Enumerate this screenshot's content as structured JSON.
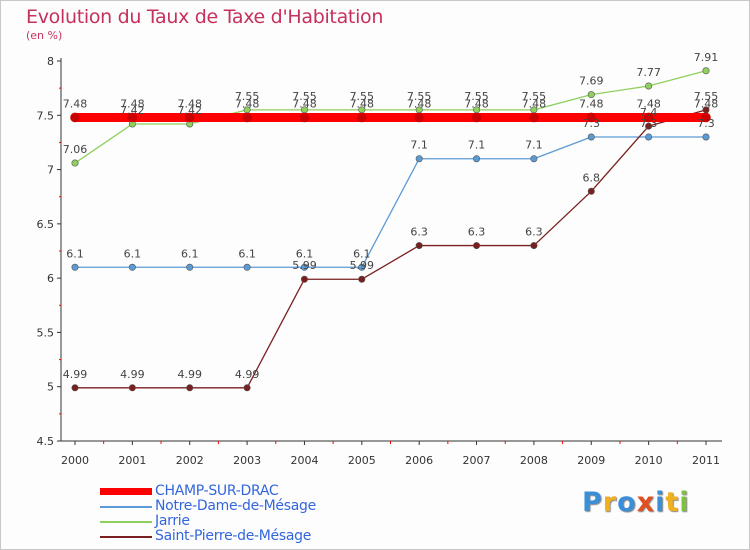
{
  "chart_data": {
    "type": "line",
    "title": "Evolution du Taux de Taxe d'Habitation",
    "subtitle": "(en %)",
    "x": [
      "2000",
      "2001",
      "2002",
      "2003",
      "2004",
      "2005",
      "2006",
      "2007",
      "2008",
      "2009",
      "2010",
      "2011"
    ],
    "ylim": [
      4.5,
      8
    ],
    "yticks": [
      "4.5",
      "5",
      "5.5",
      "6",
      "6.5",
      "7",
      "7.5",
      "8"
    ],
    "series": [
      {
        "name": "CHAMP-SUR-DRAC",
        "color": "#ff0000",
        "values": [
          7.48,
          7.48,
          7.48,
          7.48,
          7.48,
          7.48,
          7.48,
          7.48,
          7.48,
          7.48,
          7.48,
          7.48
        ],
        "labels": [
          "7.48",
          "7.48",
          "7.48",
          "7.48",
          "7.48",
          "7.48",
          "7.48",
          "7.48",
          "7.48",
          "7.48",
          "7.48",
          "7.48"
        ]
      },
      {
        "name": "Notre-Dame-de-Mésage",
        "color": "#5b9bd5",
        "values": [
          6.1,
          6.1,
          6.1,
          6.1,
          6.1,
          6.1,
          7.1,
          7.1,
          7.1,
          7.3,
          7.3,
          7.3
        ],
        "labels": [
          "6.1",
          "6.1",
          "6.1",
          "6.1",
          "6.1",
          "6.1",
          "7.1",
          "7.1",
          "7.1",
          "7.3",
          "7.3",
          "7.3"
        ]
      },
      {
        "name": "Jarrie",
        "color": "#8ed05c",
        "values": [
          7.06,
          7.42,
          7.42,
          7.55,
          7.55,
          7.55,
          7.55,
          7.55,
          7.55,
          7.69,
          7.77,
          7.91
        ],
        "labels": [
          "7.06",
          "7.42",
          "7.42",
          "7.55",
          "7.55",
          "7.55",
          "7.55",
          "7.55",
          "7.55",
          "7.69",
          "7.77",
          "7.91"
        ]
      },
      {
        "name": "Saint-Pierre-de-Mésage",
        "color": "#7a1f1f",
        "values": [
          4.99,
          4.99,
          4.99,
          4.99,
          5.99,
          5.99,
          6.3,
          6.3,
          6.3,
          6.8,
          7.4,
          7.55
        ],
        "labels": [
          "4.99",
          "4.99",
          "4.99",
          "4.99",
          "5.99",
          "5.99",
          "6.3",
          "6.3",
          "6.3",
          "6.8",
          "7.4",
          "7.55"
        ]
      }
    ],
    "legend_position": "bottom-left",
    "grid": false
  },
  "logo": {
    "letters": [
      "P",
      "r",
      "o",
      "x",
      "i",
      "t",
      "i"
    ],
    "colors": [
      "#3a8fd8",
      "#f0b020",
      "#3a8fd8",
      "#e05020",
      "#3a8fd8",
      "#f0b020",
      "#80c040"
    ]
  }
}
